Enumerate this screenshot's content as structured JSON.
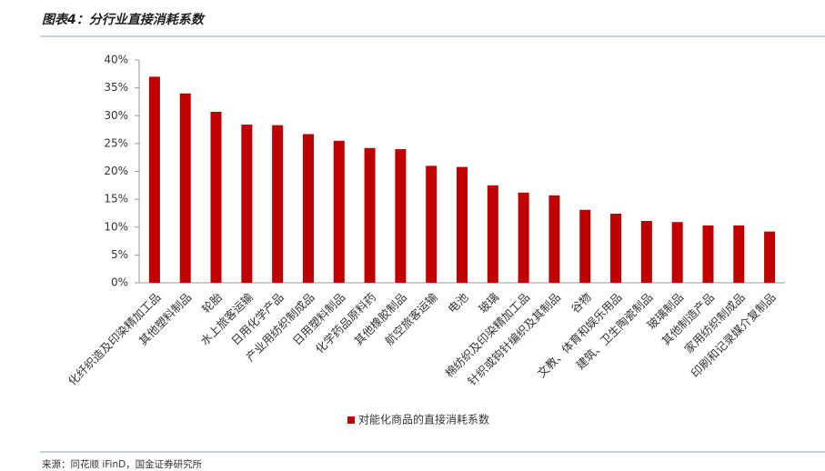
{
  "chart_data": {
    "type": "bar",
    "title": "图表4：分行业直接消耗系数",
    "source": "来源：同花顺 iFinD，国金证券研究所",
    "categories": [
      "化纤织造及印染精加工品",
      "其他塑料制品",
      "轮胎",
      "水上旅客运输",
      "日用化学产品",
      "产业用纺织制成品",
      "日用塑料制品",
      "化学药品原料药",
      "其他橡胶制品",
      "航空旅客运输",
      "电池",
      "玻璃",
      "棉纺织及印染精加工品",
      "针织或钩针编织及其制品",
      "谷物",
      "文教、体育和娱乐用品",
      "建筑、卫生陶瓷制品",
      "玻璃制品",
      "其他制造产品",
      "家用纺织制成品",
      "印刷和记录媒介复制品"
    ],
    "series": [
      {
        "name": "对能化商品的直接消耗系数",
        "color": "#c00000",
        "values": [
          37,
          34,
          30.7,
          28.4,
          28.3,
          26.7,
          25.5,
          24.2,
          24,
          21,
          20.8,
          17.5,
          16.2,
          15.7,
          13.1,
          12.4,
          11.1,
          10.9,
          10.3,
          10.3,
          9.2
        ]
      }
    ],
    "ylim": [
      0,
      40
    ],
    "yticks": [
      {
        "value": 0,
        "label": "0%"
      },
      {
        "value": 5,
        "label": "5%"
      },
      {
        "value": 10,
        "label": "10%"
      },
      {
        "value": 15,
        "label": "15%"
      },
      {
        "value": 20,
        "label": "20%"
      },
      {
        "value": 25,
        "label": "25%"
      },
      {
        "value": 30,
        "label": "30%"
      },
      {
        "value": 35,
        "label": "35%"
      },
      {
        "value": 40,
        "label": "40%"
      }
    ],
    "grid": false,
    "legend": "bottom"
  }
}
